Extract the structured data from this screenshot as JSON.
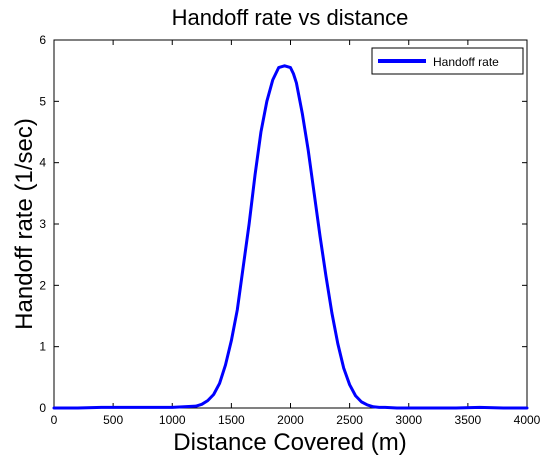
{
  "chart_data": {
    "type": "line",
    "title": "Handoff rate vs distance",
    "xlabel": "Distance Covered (m)",
    "ylabel": "Handoff rate (1/sec)",
    "xlim": [
      0,
      4000
    ],
    "ylim": [
      0,
      6
    ],
    "x_ticks": [
      "0",
      "500",
      "1000",
      "1500",
      "2000",
      "2500",
      "3000",
      "3500",
      "4000"
    ],
    "y_ticks": [
      "0",
      "1",
      "2",
      "3",
      "4",
      "5",
      "6"
    ],
    "grid": false,
    "legend_position": "top-right",
    "line_color": "#0000ff",
    "series": [
      {
        "name": "Handoff rate",
        "x": [
          0,
          200,
          400,
          600,
          800,
          1000,
          1100,
          1200,
          1250,
          1300,
          1350,
          1400,
          1450,
          1500,
          1550,
          1600,
          1650,
          1700,
          1750,
          1800,
          1850,
          1900,
          1950,
          2000,
          2025,
          2050,
          2100,
          2150,
          2200,
          2250,
          2300,
          2350,
          2400,
          2450,
          2500,
          2550,
          2600,
          2650,
          2700,
          2750,
          2800,
          2900,
          3000,
          3200,
          3400,
          3600,
          3800,
          4000
        ],
        "values": [
          0,
          0,
          0.01,
          0.01,
          0.01,
          0.01,
          0.02,
          0.03,
          0.06,
          0.12,
          0.22,
          0.4,
          0.7,
          1.1,
          1.6,
          2.3,
          3.0,
          3.8,
          4.5,
          5.0,
          5.35,
          5.55,
          5.58,
          5.55,
          5.45,
          5.3,
          4.8,
          4.2,
          3.5,
          2.8,
          2.15,
          1.55,
          1.05,
          0.65,
          0.38,
          0.2,
          0.1,
          0.05,
          0.02,
          0.01,
          0.01,
          0,
          0,
          0,
          0,
          0.01,
          0,
          0
        ]
      }
    ]
  }
}
